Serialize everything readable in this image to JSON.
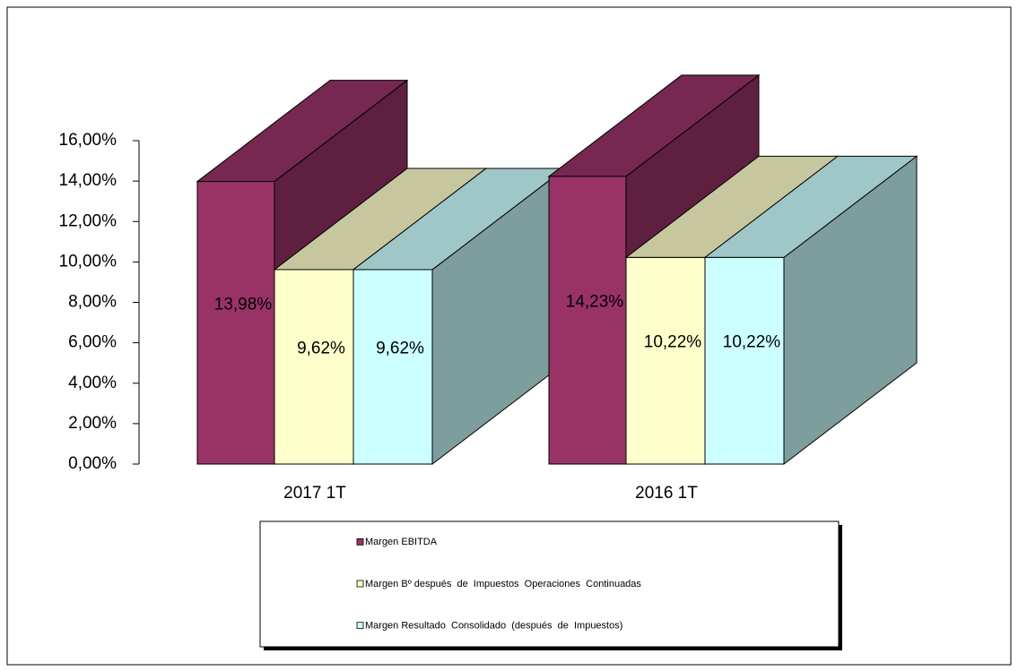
{
  "chart_data": {
    "type": "bar3d",
    "categories": [
      "2017 1T",
      "2016 1T"
    ],
    "series": [
      {
        "name": "Margen EBITDA",
        "color": "#993366",
        "values": [
          13.98,
          14.23
        ],
        "value_labels": [
          "13,98%",
          "14,23%"
        ]
      },
      {
        "name": "Margen Bº después  de  Impuestos  Operaciones  Continuadas",
        "color": "#FFFFCC",
        "values": [
          9.62,
          10.22
        ],
        "value_labels": [
          "9,62%",
          "10,22%"
        ]
      },
      {
        "name": "Margen Resultado  Consolidado  (después  de  Impuestos)",
        "color": "#CCFFFF",
        "values": [
          9.62,
          10.22
        ],
        "value_labels": [
          "9,62%",
          "10,22%"
        ]
      }
    ],
    "ylim": [
      0,
      16
    ],
    "yticks": [
      {
        "value": 0,
        "label": "0,00%"
      },
      {
        "value": 2,
        "label": "2,00%"
      },
      {
        "value": 4,
        "label": "4,00%"
      },
      {
        "value": 6,
        "label": "6,00%"
      },
      {
        "value": 8,
        "label": "8,00%"
      },
      {
        "value": 10,
        "label": "10,00%"
      },
      {
        "value": 12,
        "label": "12,00%"
      },
      {
        "value": 14,
        "label": "14,00%"
      },
      {
        "value": 16,
        "label": "16,00%"
      }
    ],
    "legend": "bottom"
  }
}
